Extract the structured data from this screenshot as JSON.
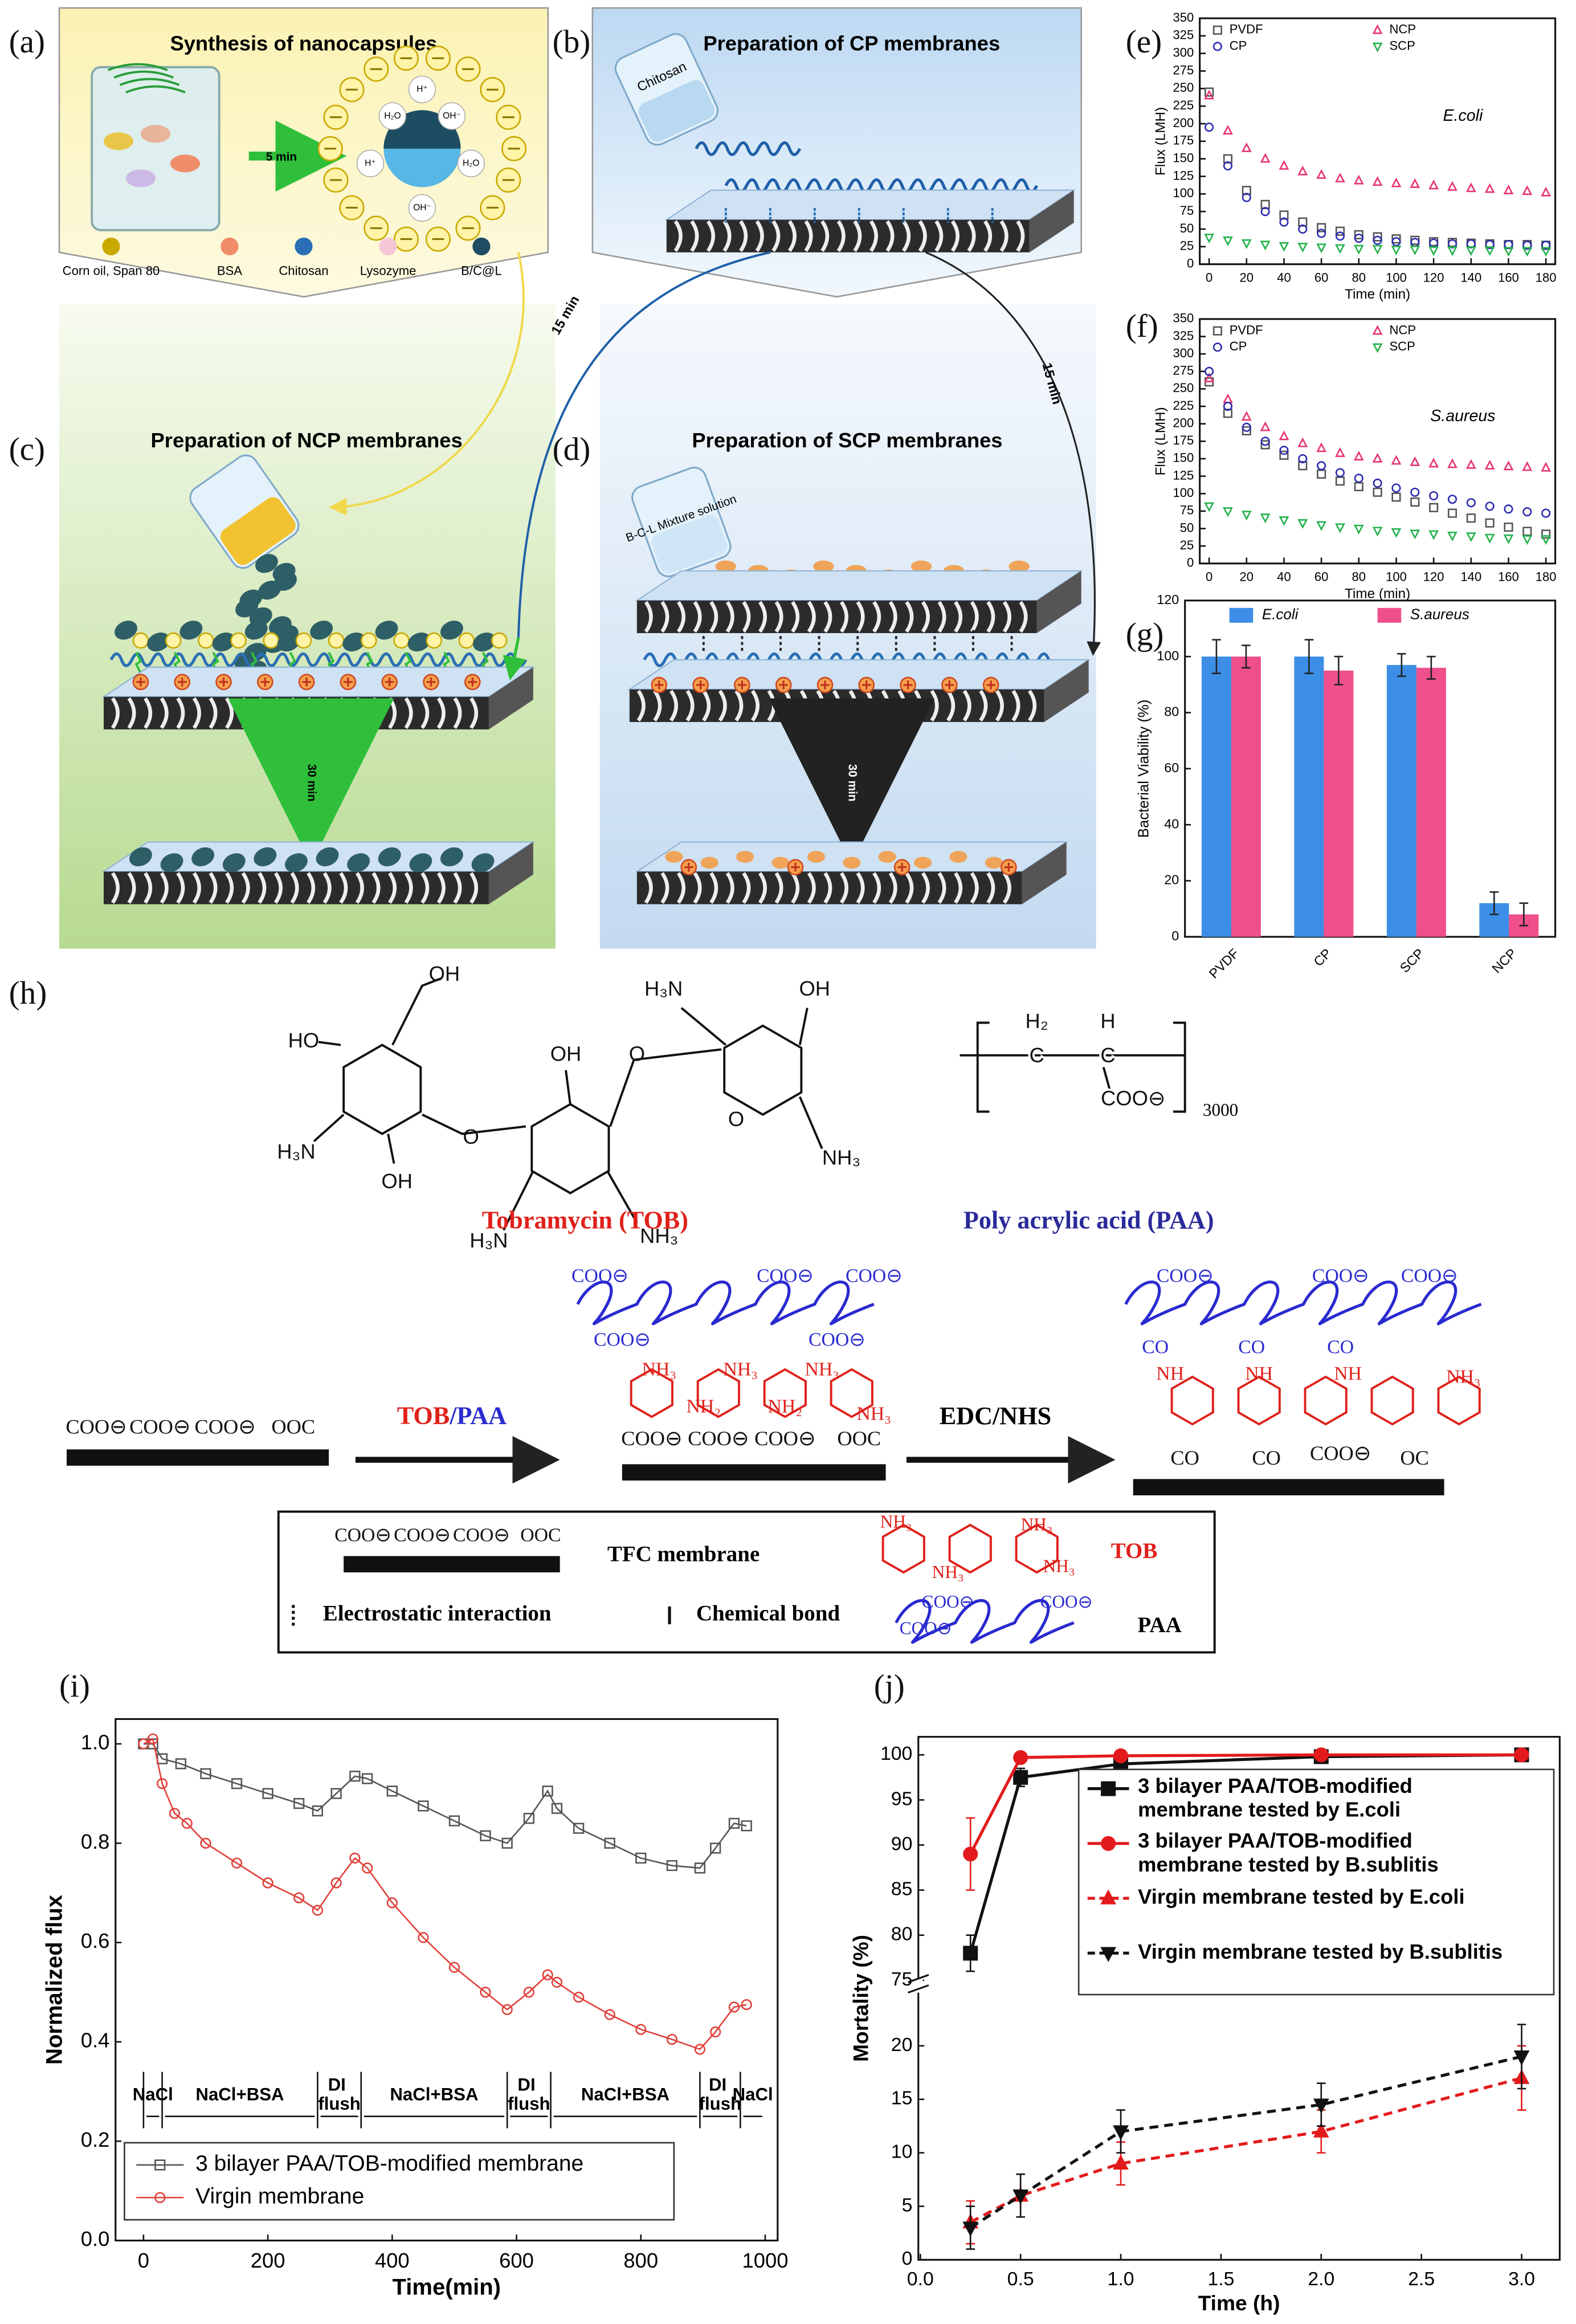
{
  "figure": {
    "a": {
      "label": "(a)",
      "title": "Synthesis of nanocapsules",
      "time": "5 min",
      "capsule_labels": [
        "H₂O",
        "OH⁻",
        "H⁺"
      ],
      "legend": [
        "Corn oil, Span 80",
        "BSA",
        "Chitosan",
        "Lysozyme",
        "B/C@L"
      ]
    },
    "b": {
      "label": "(b)",
      "title": "Preparation of CP membranes",
      "reagent": "Chitosan"
    },
    "c": {
      "label": "(c)",
      "title": "Preparation of NCP membranes",
      "time": "30 min"
    },
    "d": {
      "label": "(d)",
      "title": "Preparation of SCP membranes",
      "reagent": "B-C-L Mixture solution",
      "time": "30 min"
    },
    "arrow_times": [
      "15 min",
      "15 min"
    ],
    "h": {
      "label": "(h)",
      "tob_atoms": [
        "OH",
        "HO",
        "H₃N",
        "OH",
        "O",
        "OH",
        "O",
        "H₃N",
        "OH",
        "O",
        "NH₃",
        "H₃N",
        "NH₃"
      ],
      "paa_atoms": [
        "H₂",
        "C",
        "H",
        "C",
        "COO⊖"
      ],
      "paa_n": "3000",
      "tob": "Tobramycin (TOB)",
      "paa": "Poly acrylic acid (PAA)",
      "step1": "TOB/PAA",
      "step2": "EDC/NHS",
      "groups": {
        "coo": "COO⊖",
        "ooc": "OOC",
        "nh3": "NH₃",
        "nh2": "NH₂",
        "nh": "NH",
        "co": "CO",
        "oc": "OC"
      },
      "legend": [
        "TFC membrane",
        "TOB",
        "Electrostatic interaction",
        "Chemical bond",
        "PAA"
      ]
    }
  },
  "chart_data": [
    {
      "type": "scatter",
      "panel_label": "(e)",
      "annotation": "E.coli",
      "x_label": "Time (min)",
      "y_label": "Flux (LMH)",
      "legend": "top",
      "x": [
        0,
        10,
        20,
        30,
        40,
        50,
        60,
        70,
        80,
        90,
        100,
        110,
        120,
        130,
        140,
        150,
        160,
        170,
        180
      ],
      "xlim": [
        -5,
        185
      ],
      "xticks": [
        0,
        20,
        40,
        60,
        80,
        100,
        120,
        140,
        160,
        180
      ],
      "ylim": [
        0,
        350
      ],
      "yticks": [
        0,
        25,
        50,
        75,
        100,
        125,
        150,
        175,
        200,
        225,
        250,
        275,
        300,
        325,
        350
      ],
      "series": [
        {
          "name": "PVDF",
          "color": "#555555",
          "marker": "square",
          "values": [
            245,
            150,
            105,
            85,
            70,
            60,
            52,
            47,
            42,
            39,
            36,
            34,
            32,
            31,
            30,
            29,
            28,
            28,
            27
          ]
        },
        {
          "name": "NCP",
          "color": "#e8336e",
          "marker": "triangle",
          "values": [
            240,
            190,
            165,
            150,
            140,
            132,
            127,
            122,
            119,
            117,
            115,
            114,
            112,
            110,
            108,
            107,
            105,
            104,
            102
          ]
        },
        {
          "name": "CP",
          "color": "#2b2bb0",
          "marker": "circle",
          "values": [
            195,
            140,
            95,
            75,
            60,
            50,
            44,
            40,
            37,
            34,
            32,
            31,
            30,
            29,
            29,
            28,
            28,
            27,
            27
          ]
        },
        {
          "name": "SCP",
          "color": "#22b24c",
          "marker": "triangle-down",
          "values": [
            38,
            34,
            30,
            28,
            26,
            25,
            24,
            23,
            22,
            22,
            21,
            21,
            20,
            20,
            20,
            20,
            19,
            19,
            19
          ]
        }
      ]
    },
    {
      "type": "scatter",
      "panel_label": "(f)",
      "annotation": "S.aureus",
      "x_label": "Time (min)",
      "y_label": "Flux (LMH)",
      "legend": "top",
      "x": [
        0,
        10,
        20,
        30,
        40,
        50,
        60,
        70,
        80,
        90,
        100,
        110,
        120,
        130,
        140,
        150,
        160,
        170,
        180
      ],
      "xlim": [
        -5,
        185
      ],
      "xticks": [
        0,
        20,
        40,
        60,
        80,
        100,
        120,
        140,
        160,
        180
      ],
      "ylim": [
        0,
        350
      ],
      "yticks": [
        0,
        25,
        50,
        75,
        100,
        125,
        150,
        175,
        200,
        225,
        250,
        275,
        300,
        325,
        350
      ],
      "series": [
        {
          "name": "PVDF",
          "color": "#555555",
          "marker": "square",
          "values": [
            260,
            215,
            190,
            170,
            155,
            140,
            128,
            118,
            110,
            102,
            95,
            88,
            80,
            72,
            65,
            58,
            52,
            46,
            42
          ]
        },
        {
          "name": "NCP",
          "color": "#e8336e",
          "marker": "triangle",
          "values": [
            265,
            235,
            210,
            195,
            182,
            172,
            165,
            158,
            153,
            150,
            147,
            145,
            143,
            142,
            141,
            140,
            139,
            138,
            137
          ]
        },
        {
          "name": "CP",
          "color": "#2b2bb0",
          "marker": "circle",
          "values": [
            275,
            225,
            195,
            175,
            162,
            150,
            140,
            130,
            122,
            115,
            108,
            102,
            97,
            92,
            87,
            82,
            78,
            74,
            72
          ]
        },
        {
          "name": "SCP",
          "color": "#22b24c",
          "marker": "triangle-down",
          "values": [
            82,
            75,
            70,
            66,
            62,
            58,
            55,
            52,
            50,
            47,
            45,
            43,
            42,
            40,
            39,
            37,
            36,
            35,
            35
          ]
        }
      ]
    },
    {
      "type": "bar",
      "panel_label": "(g)",
      "y_label": "Bacterial Viability (%)",
      "categories": [
        "PVDF",
        "CP",
        "SCP",
        "NCP"
      ],
      "ylim": [
        0,
        120
      ],
      "yticks": [
        0,
        20,
        40,
        60,
        80,
        100,
        120
      ],
      "series": [
        {
          "name": "E.coli",
          "color": "#3c8ee6",
          "values": [
            100,
            100,
            97,
            12
          ],
          "errors": [
            6,
            6,
            4,
            4
          ]
        },
        {
          "name": "S.aureus",
          "color": "#ef4f8b",
          "values": [
            100,
            95,
            96,
            8
          ],
          "errors": [
            4,
            5,
            4,
            4
          ]
        }
      ]
    },
    {
      "type": "line",
      "panel_label": "(i)",
      "x_label": "Time(min)",
      "y_label": "Normalized flux",
      "legend": "lower left",
      "xlim": [
        -45,
        1020
      ],
      "xticks": [
        0,
        200,
        400,
        600,
        800,
        1000
      ],
      "ylim": [
        0,
        1.05
      ],
      "yticks": [
        {
          "value": 0,
          "label": "0.0"
        },
        {
          "value": 0.2,
          "label": "0.2"
        },
        {
          "value": 0.4,
          "label": "0.4"
        },
        {
          "value": 0.6,
          "label": "0.6"
        },
        {
          "value": 0.8,
          "label": "0.8"
        },
        {
          "value": 1,
          "label": "1.0"
        }
      ],
      "phase_level": 0.25,
      "phases": [
        {
          "label": "NaCl",
          "start": 0,
          "end": 30
        },
        {
          "label": "NaCl+BSA",
          "start": 30,
          "end": 280
        },
        {
          "label": "DI flush",
          "start": 280,
          "end": 350
        },
        {
          "label": "NaCl+BSA",
          "start": 350,
          "end": 585
        },
        {
          "label": "DI flush",
          "start": 585,
          "end": 655
        },
        {
          "label": "NaCl+BSA",
          "start": 655,
          "end": 895
        },
        {
          "label": "DI flush",
          "start": 895,
          "end": 960
        },
        {
          "label": "NaCl",
          "start": 960,
          "end": 1000
        }
      ],
      "series": [
        {
          "name": "3 bilayer PAA/TOB-modified membrane",
          "color": "#555555",
          "marker": "square",
          "x": [
            0,
            15,
            30,
            60,
            100,
            150,
            200,
            250,
            280,
            310,
            340,
            360,
            400,
            450,
            500,
            550,
            585,
            620,
            650,
            665,
            700,
            750,
            800,
            850,
            895,
            920,
            950,
            970
          ],
          "values": [
            1.0,
            1.0,
            0.97,
            0.96,
            0.94,
            0.92,
            0.9,
            0.88,
            0.865,
            0.9,
            0.935,
            0.93,
            0.905,
            0.875,
            0.845,
            0.815,
            0.8,
            0.85,
            0.905,
            0.87,
            0.83,
            0.8,
            0.77,
            0.755,
            0.75,
            0.79,
            0.84,
            0.835
          ]
        },
        {
          "name": "Virgin membrane",
          "color": "#e0403a",
          "marker": "circle",
          "x": [
            0,
            15,
            30,
            50,
            70,
            100,
            150,
            200,
            250,
            280,
            310,
            340,
            360,
            400,
            450,
            500,
            550,
            585,
            620,
            650,
            665,
            700,
            750,
            800,
            850,
            895,
            920,
            950,
            970
          ],
          "values": [
            1.0,
            1.01,
            0.92,
            0.86,
            0.84,
            0.8,
            0.76,
            0.72,
            0.69,
            0.665,
            0.72,
            0.77,
            0.75,
            0.68,
            0.61,
            0.55,
            0.5,
            0.465,
            0.5,
            0.535,
            0.52,
            0.49,
            0.455,
            0.425,
            0.405,
            0.385,
            0.42,
            0.47,
            0.475
          ]
        }
      ]
    },
    {
      "type": "line",
      "panel_label": "(j)",
      "x_label": "Time (h)",
      "y_label": "Mortality (%)",
      "legend": "center right",
      "filled": true,
      "x": [
        0.25,
        0.5,
        1,
        2,
        3
      ],
      "xlim": [
        -0.01,
        3.19
      ],
      "xticks": [
        {
          "value": 0,
          "label": "0.0"
        },
        {
          "value": 0.5,
          "label": "0.5"
        },
        {
          "value": 1,
          "label": "1.0"
        },
        {
          "value": 1.5,
          "label": "1.5"
        },
        {
          "value": 2,
          "label": "2.0"
        },
        {
          "value": 2.5,
          "label": "2.5"
        },
        {
          "value": 3,
          "label": "3.0"
        }
      ],
      "ylim": [
        0,
        102
      ],
      "ybreak": [
        22,
        73
      ],
      "yticks": [
        0,
        5,
        10,
        15,
        20,
        75,
        80,
        85,
        90,
        95,
        100
      ],
      "series": [
        {
          "name": "3 bilayer PAA/TOB-modified membrane tested by E.coli",
          "color": "#111111",
          "marker": "square",
          "values": [
            78,
            97.5,
            99,
            99.8,
            100
          ],
          "errors": [
            2,
            1,
            0.5,
            0.2,
            0.2
          ]
        },
        {
          "name": "3 bilayer PAA/TOB-modified membrane tested by B.sublitis",
          "color": "#e31a1c",
          "marker": "circle",
          "values": [
            89,
            99.7,
            99.9,
            100,
            100
          ],
          "errors": [
            4,
            0.5,
            0.3,
            0.2,
            0.2
          ]
        },
        {
          "name": "Virgin membrane tested by E.coli",
          "color": "#e31a1c",
          "marker": "triangle",
          "dash": true,
          "values": [
            3.5,
            6,
            9,
            12,
            17
          ],
          "errors": [
            2,
            2,
            2,
            2,
            3
          ]
        },
        {
          "name": "Virgin membrane tested by B.sublitis",
          "color": "#111111",
          "marker": "triangle-down",
          "dash": true,
          "values": [
            3,
            6,
            12,
            14.5,
            19
          ],
          "errors": [
            2,
            2,
            2,
            2,
            3
          ]
        }
      ]
    }
  ]
}
